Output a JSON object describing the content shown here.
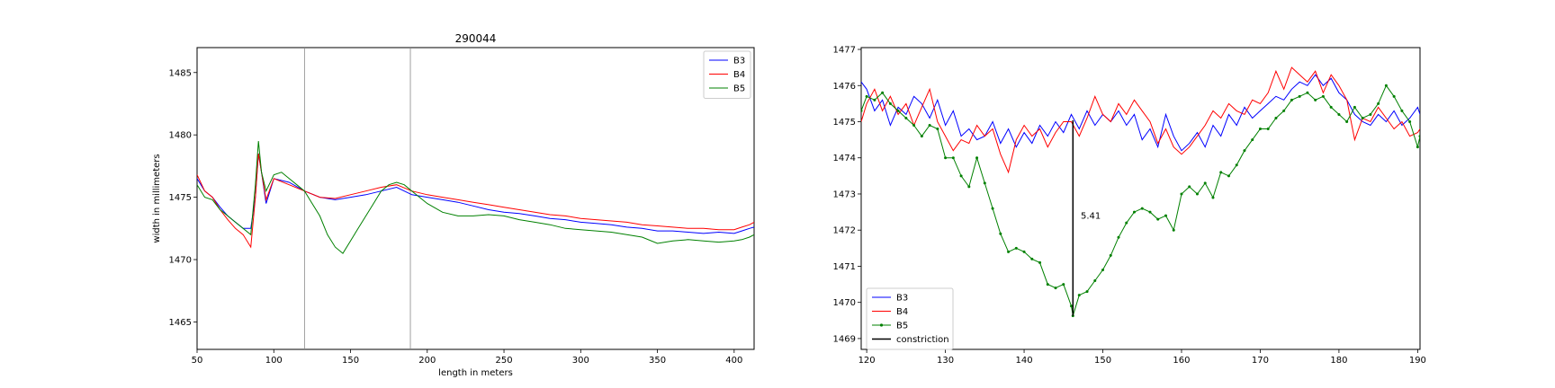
{
  "chart_data": [
    {
      "type": "line",
      "title": "290044",
      "xlabel": "length in meters",
      "ylabel": "width in millimeters",
      "xlim": [
        50,
        413
      ],
      "ylim": [
        1462.8,
        1487.0
      ],
      "xticks": [
        "50",
        "100",
        "150",
        "200",
        "250",
        "300",
        "350",
        "400"
      ],
      "yticks": [
        "1465",
        "1470",
        "1475",
        "1480",
        "1485"
      ],
      "vlines": [
        120,
        189
      ],
      "grid": false,
      "legend_position": "top-right",
      "series": [
        {
          "name": "B3",
          "color": "#0000ff",
          "x": [
            50,
            55,
            60,
            65,
            70,
            75,
            80,
            85,
            88,
            90,
            92,
            95,
            100,
            110,
            120,
            130,
            140,
            150,
            160,
            170,
            180,
            190,
            200,
            210,
            220,
            230,
            240,
            250,
            260,
            270,
            280,
            290,
            300,
            310,
            320,
            330,
            340,
            350,
            360,
            370,
            380,
            390,
            400,
            405,
            410,
            413
          ],
          "y": [
            1476.5,
            1475.5,
            1475,
            1474.2,
            1473.5,
            1473,
            1472.5,
            1472.5,
            1475,
            1478.5,
            1477,
            1474.5,
            1476.5,
            1476.2,
            1475.5,
            1475,
            1474.8,
            1475,
            1475.2,
            1475.5,
            1475.8,
            1475.2,
            1475,
            1474.8,
            1474.6,
            1474.3,
            1474,
            1473.8,
            1473.7,
            1473.5,
            1473.3,
            1473.2,
            1473,
            1472.9,
            1472.8,
            1472.6,
            1472.5,
            1472.3,
            1472.3,
            1472.2,
            1472.1,
            1472.2,
            1472.1,
            1472.3,
            1472.5,
            1472.6
          ]
        },
        {
          "name": "B4",
          "color": "#ff0000",
          "x": [
            50,
            55,
            60,
            65,
            70,
            75,
            80,
            85,
            88,
            90,
            92,
            95,
            100,
            110,
            120,
            130,
            140,
            150,
            160,
            170,
            180,
            190,
            200,
            210,
            220,
            230,
            240,
            250,
            260,
            270,
            280,
            290,
            300,
            310,
            320,
            330,
            340,
            350,
            360,
            370,
            380,
            390,
            400,
            405,
            410,
            413
          ],
          "y": [
            1476.8,
            1475.5,
            1475,
            1474,
            1473.2,
            1472.5,
            1472,
            1471,
            1475,
            1478.5,
            1477,
            1474.8,
            1476.5,
            1476,
            1475.5,
            1475,
            1474.9,
            1475.2,
            1475.5,
            1475.8,
            1476,
            1475.5,
            1475.2,
            1475,
            1474.8,
            1474.6,
            1474.4,
            1474.2,
            1474,
            1473.8,
            1473.6,
            1473.5,
            1473.3,
            1473.2,
            1473.1,
            1473,
            1472.8,
            1472.7,
            1472.6,
            1472.5,
            1472.5,
            1472.4,
            1472.4,
            1472.6,
            1472.8,
            1473
          ]
        },
        {
          "name": "B5",
          "color": "#008000",
          "x": [
            50,
            55,
            60,
            65,
            70,
            75,
            80,
            85,
            88,
            90,
            92,
            95,
            100,
            105,
            110,
            115,
            120,
            125,
            130,
            135,
            140,
            145,
            150,
            155,
            160,
            165,
            170,
            175,
            180,
            185,
            190,
            200,
            210,
            220,
            230,
            240,
            250,
            260,
            270,
            280,
            290,
            300,
            310,
            320,
            330,
            340,
            350,
            360,
            370,
            380,
            390,
            400,
            405,
            410,
            413
          ],
          "y": [
            1476,
            1475,
            1474.8,
            1474,
            1473.5,
            1473,
            1472.5,
            1472,
            1476,
            1479.5,
            1477,
            1475.5,
            1476.8,
            1477,
            1476.5,
            1476,
            1475.5,
            1474.5,
            1473.5,
            1472,
            1471,
            1470.5,
            1471.5,
            1472.5,
            1473.5,
            1474.5,
            1475.5,
            1476,
            1476.2,
            1476,
            1475.5,
            1474.5,
            1473.8,
            1473.5,
            1473.5,
            1473.6,
            1473.5,
            1473.2,
            1473,
            1472.8,
            1472.5,
            1472.4,
            1472.3,
            1472.2,
            1472,
            1471.8,
            1471.3,
            1471.5,
            1471.6,
            1471.5,
            1471.4,
            1471.5,
            1471.6,
            1471.8,
            1472
          ]
        }
      ]
    },
    {
      "type": "line",
      "title": "",
      "xlabel": "",
      "ylabel": "",
      "xlim": [
        119.3,
        190.3
      ],
      "ylim": [
        1468.7,
        1477.05
      ],
      "xticks": [
        "120",
        "130",
        "140",
        "150",
        "160",
        "170",
        "180",
        "190"
      ],
      "yticks": [
        "1469",
        "1470",
        "1471",
        "1472",
        "1473",
        "1474",
        "1475",
        "1476",
        "1477"
      ],
      "grid": false,
      "legend_position": "lower-left",
      "annotation": {
        "x": 146.2,
        "y_low": 1469.63,
        "y_high": 1475.04,
        "label_x": 147.2,
        "label_y": 1472.4,
        "text": "5.41"
      },
      "series": [
        {
          "name": "B3",
          "color": "#0000ff",
          "marker": false,
          "x": [
            119.3,
            120,
            121,
            122,
            123,
            124,
            125,
            126,
            127,
            128,
            129,
            130,
            131,
            132,
            133,
            134,
            135,
            136,
            137,
            138,
            139,
            140,
            141,
            142,
            143,
            144,
            145,
            146,
            147,
            148,
            149,
            150,
            151,
            152,
            153,
            154,
            155,
            156,
            157,
            158,
            159,
            160,
            161,
            162,
            163,
            164,
            165,
            166,
            167,
            168,
            169,
            170,
            171,
            172,
            173,
            174,
            175,
            176,
            177,
            178,
            179,
            180,
            181,
            182,
            183,
            184,
            185,
            186,
            187,
            188,
            189,
            190,
            190.3
          ],
          "y": [
            1476.1,
            1475.9,
            1475.3,
            1475.6,
            1474.9,
            1475.4,
            1475.2,
            1475.7,
            1475.5,
            1475.1,
            1475.6,
            1474.9,
            1475.3,
            1474.6,
            1474.8,
            1474.5,
            1474.6,
            1475,
            1474.4,
            1474.8,
            1474.3,
            1474.7,
            1474.4,
            1474.9,
            1474.6,
            1475,
            1474.7,
            1475.2,
            1474.8,
            1475.3,
            1474.9,
            1475.2,
            1475,
            1475.3,
            1474.9,
            1475.2,
            1474.5,
            1474.8,
            1474.3,
            1475.2,
            1474.6,
            1474.2,
            1474.4,
            1474.7,
            1474.3,
            1474.9,
            1474.6,
            1475.2,
            1474.9,
            1475.4,
            1475.1,
            1475.3,
            1475.5,
            1475.7,
            1475.6,
            1475.9,
            1476.1,
            1476,
            1476.3,
            1476,
            1476.2,
            1475.8,
            1475.6,
            1475.2,
            1475,
            1474.9,
            1475.2,
            1475,
            1475.3,
            1474.9,
            1475.1,
            1475.4,
            1475.2
          ]
        },
        {
          "name": "B4",
          "color": "#ff0000",
          "marker": false,
          "x": [
            119.3,
            120,
            121,
            122,
            123,
            124,
            125,
            126,
            127,
            128,
            129,
            130,
            131,
            132,
            133,
            134,
            135,
            136,
            137,
            138,
            139,
            140,
            141,
            142,
            143,
            144,
            145,
            146,
            147,
            148,
            149,
            150,
            151,
            152,
            153,
            154,
            155,
            156,
            157,
            158,
            159,
            160,
            161,
            162,
            163,
            164,
            165,
            166,
            167,
            168,
            169,
            170,
            171,
            172,
            173,
            174,
            175,
            176,
            177,
            178,
            179,
            180,
            181,
            182,
            183,
            184,
            185,
            186,
            187,
            188,
            189,
            190,
            190.3
          ],
          "y": [
            1475,
            1475.5,
            1475.9,
            1475.3,
            1475.7,
            1475.2,
            1475.5,
            1474.9,
            1475.4,
            1475.9,
            1475,
            1474.6,
            1474.2,
            1474.5,
            1474.4,
            1474.9,
            1474.6,
            1474.8,
            1474.1,
            1473.6,
            1474.5,
            1474.9,
            1474.6,
            1474.8,
            1474.3,
            1474.7,
            1475,
            1475,
            1474.6,
            1475.1,
            1475.7,
            1475.2,
            1475,
            1475.5,
            1475.2,
            1475.6,
            1475.3,
            1475,
            1474.4,
            1474.8,
            1474.3,
            1474.1,
            1474.3,
            1474.6,
            1474.9,
            1475.3,
            1475.1,
            1475.5,
            1475.3,
            1475.2,
            1475.6,
            1475.5,
            1475.8,
            1476.4,
            1475.9,
            1476.5,
            1476.3,
            1476.1,
            1476.4,
            1475.8,
            1476.3,
            1476,
            1475.6,
            1474.5,
            1475.1,
            1475,
            1475.4,
            1475.1,
            1474.8,
            1475,
            1474.6,
            1474.7,
            1474.8
          ]
        },
        {
          "name": "B5",
          "color": "#008000",
          "marker": true,
          "x": [
            119.3,
            120,
            121,
            122,
            123,
            124,
            125,
            126,
            127,
            128,
            129,
            130,
            131,
            132,
            133,
            134,
            135,
            136,
            137,
            138,
            139,
            140,
            141,
            142,
            143,
            144,
            145,
            146,
            146.2,
            147,
            148,
            149,
            150,
            151,
            152,
            153,
            154,
            155,
            156,
            157,
            158,
            159,
            160,
            161,
            162,
            163,
            164,
            165,
            166,
            167,
            168,
            169,
            170,
            171,
            172,
            173,
            174,
            175,
            176,
            177,
            178,
            179,
            180,
            181,
            182,
            183,
            184,
            185,
            186,
            187,
            188,
            189,
            190,
            190.3
          ],
          "y": [
            1475.3,
            1475.7,
            1475.6,
            1475.8,
            1475.5,
            1475.3,
            1475.1,
            1474.9,
            1474.6,
            1474.9,
            1474.8,
            1474,
            1474,
            1473.5,
            1473.2,
            1474,
            1473.3,
            1472.6,
            1471.9,
            1471.4,
            1471.5,
            1471.4,
            1471.2,
            1471.1,
            1470.5,
            1470.4,
            1470.5,
            1469.9,
            1469.63,
            1470.2,
            1470.3,
            1470.6,
            1470.9,
            1471.3,
            1471.8,
            1472.2,
            1472.5,
            1472.6,
            1472.5,
            1472.3,
            1472.4,
            1472,
            1473,
            1473.2,
            1473,
            1473.3,
            1472.9,
            1473.6,
            1473.5,
            1473.8,
            1474.2,
            1474.5,
            1474.8,
            1474.8,
            1475.1,
            1475.3,
            1475.6,
            1475.7,
            1475.8,
            1475.6,
            1475.7,
            1475.4,
            1475.2,
            1475,
            1475.4,
            1475.1,
            1475.2,
            1475.5,
            1476,
            1475.7,
            1475.3,
            1475,
            1474.3,
            1474.6
          ]
        },
        {
          "name": "constriction",
          "color": "#000000",
          "marker": false,
          "x": [
            146.2,
            146.2
          ],
          "y": [
            1469.63,
            1475.04
          ]
        }
      ]
    }
  ]
}
